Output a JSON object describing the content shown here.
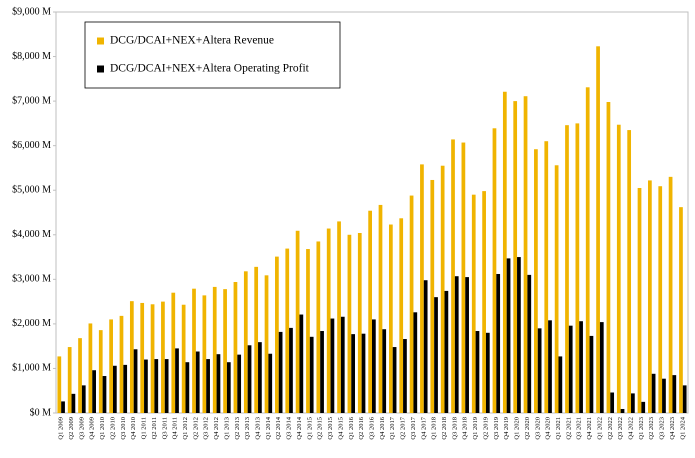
{
  "chart_data": {
    "type": "bar",
    "categories": [
      "Q1 2009",
      "Q2 2009",
      "Q3 2009",
      "Q4 2009",
      "Q1 2010",
      "Q2 2010",
      "Q3 2010",
      "Q4 2010",
      "Q1 2011",
      "Q2 2011",
      "Q3 2011",
      "Q4 2011",
      "Q1 2012",
      "Q2 2012",
      "Q3 2012",
      "Q4 2012",
      "Q1 2013",
      "Q2 2013",
      "Q3 2013",
      "Q4 2013",
      "Q1 2014",
      "Q2 2014",
      "Q3 2014",
      "Q4 2014",
      "Q1 2015",
      "Q2 2015",
      "Q3 2015",
      "Q4 2015",
      "Q1 2016",
      "Q2 2016",
      "Q3 2016",
      "Q4 2016",
      "Q1 2017",
      "Q2 2017",
      "Q3 2017",
      "Q4 2017",
      "Q1 2018",
      "Q2 2018",
      "Q3 2018",
      "Q4 2018",
      "Q1 2019",
      "Q2 2019",
      "Q3 2019",
      "Q4 2019",
      "Q1 2020",
      "Q2 2020",
      "Q3 2020",
      "Q4 2020",
      "Q1 2021",
      "Q2 2021",
      "Q3 2021",
      "Q4 2021",
      "Q1 2022",
      "Q2 2022",
      "Q3 2022",
      "Q4 2022",
      "Q1 2023",
      "Q2 2023",
      "Q3 2023",
      "Q4 2023",
      "Q1 2024"
    ],
    "series": [
      {
        "name": "DCG/DCAI+NEX+Altera Revenue",
        "color": "#f0b400",
        "values": [
          1270,
          1480,
          1680,
          2010,
          1860,
          2100,
          2180,
          2510,
          2470,
          2440,
          2500,
          2700,
          2430,
          2790,
          2640,
          2830,
          2780,
          2940,
          3180,
          3280,
          3090,
          3510,
          3690,
          4090,
          3680,
          3850,
          4140,
          4300,
          4000,
          4040,
          4540,
          4670,
          4230,
          4370,
          4880,
          5580,
          5230,
          5550,
          6140,
          6070,
          4900,
          4980,
          6390,
          7210,
          7000,
          7110,
          5920,
          6100,
          5560,
          6460,
          6500,
          7310,
          8230,
          6980,
          6470,
          6350,
          5050,
          5220,
          5090,
          5300,
          4620
        ]
      },
      {
        "name": "DCG/DCAI+NEX+Altera Operating Profit",
        "color": "#000000",
        "values": [
          260,
          430,
          620,
          960,
          830,
          1060,
          1080,
          1430,
          1200,
          1210,
          1210,
          1450,
          1140,
          1380,
          1210,
          1320,
          1140,
          1310,
          1520,
          1590,
          1330,
          1820,
          1910,
          2210,
          1710,
          1840,
          2120,
          2160,
          1770,
          1780,
          2100,
          1880,
          1480,
          1660,
          2260,
          2980,
          2600,
          2740,
          3070,
          3050,
          1840,
          1800,
          3120,
          3470,
          3500,
          3100,
          1900,
          2080,
          1270,
          1960,
          2060,
          1730,
          2040,
          460,
          90,
          440,
          250,
          880,
          770,
          850,
          620
        ]
      }
    ],
    "ylim": [
      0,
      9000
    ],
    "yticks": [
      {
        "value": 0,
        "label": "$0 M"
      },
      {
        "value": 1000,
        "label": "$1,000 M"
      },
      {
        "value": 2000,
        "label": "$2,000 M"
      },
      {
        "value": 3000,
        "label": "$3,000 M"
      },
      {
        "value": 4000,
        "label": "$4,000 M"
      },
      {
        "value": 5000,
        "label": "$5,000 M"
      },
      {
        "value": 6000,
        "label": "$6,000 M"
      },
      {
        "value": 7000,
        "label": "$7,000 M"
      },
      {
        "value": 8000,
        "label": "$8,000 M"
      },
      {
        "value": 9000,
        "label": "$9,000 M"
      }
    ],
    "grid": false,
    "legend": "upper left"
  }
}
